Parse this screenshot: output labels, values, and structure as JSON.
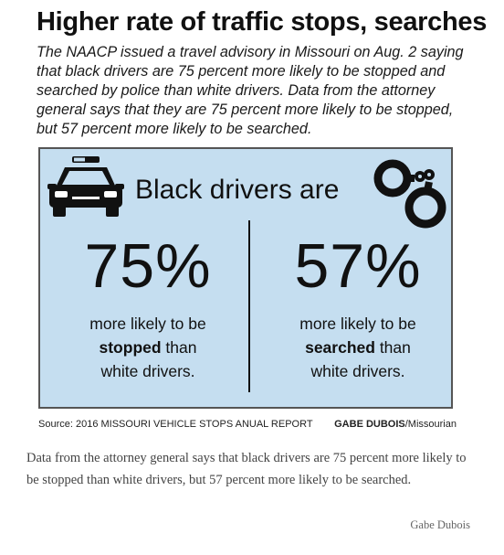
{
  "headline": "Higher rate of traffic stops, searches",
  "intro": "The NAACP issued a travel advisory in Missouri on Aug. 2 saying that black drivers are 75 percent more likely to be stopped and searched by police than white drivers. Data from the attorney general says that they are 75 percent more likely to be stopped, but 57 percent more likely to be searched.",
  "panel": {
    "heading": "Black drivers are",
    "car_icon": "police-car-icon",
    "cuffs_icon": "handcuffs-icon",
    "background": "#c5def0",
    "left": {
      "percent": "75%",
      "line1": "more likely to be",
      "bold": "stopped",
      "after_bold": " than",
      "line3": "white drivers."
    },
    "right": {
      "percent": "57%",
      "line1": "more likely to be",
      "bold": "searched",
      "after_bold": " than",
      "line3": "white drivers."
    }
  },
  "source": "Source: 2016 MISSOURI VEHICLE STOPS ANUAL REPORT",
  "credit": {
    "name": "GABE DUBOIS",
    "outlet": "/Missourian"
  },
  "caption": "Data from the attorney general says that black drivers are 75 percent more likely to be stopped than white drivers, but 57 percent more likely to be searched.",
  "photo_credit": "Gabe Dubois"
}
